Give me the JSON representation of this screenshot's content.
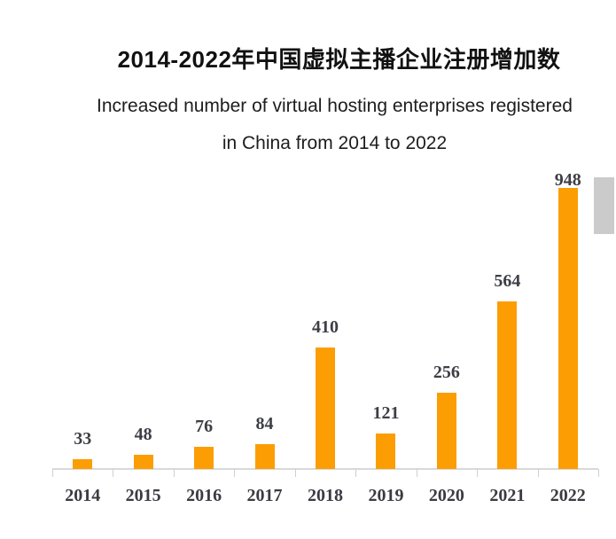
{
  "header": {
    "title_zh": "2014-2022年中国虚拟主播企业注册增加数",
    "subtitle_en_line1": "Increased number of virtual hosting enterprises registered",
    "subtitle_en_line2": "in China from 2014 to 2022"
  },
  "chart_data": {
    "type": "bar",
    "title": "2014-2022年中国虚拟主播企业注册增加数",
    "subtitle": "Increased number of virtual hosting enterprises registered in China from 2014 to 2022",
    "categories": [
      "2014",
      "2015",
      "2016",
      "2017",
      "2018",
      "2019",
      "2020",
      "2021",
      "2022"
    ],
    "values": [
      33,
      48,
      76,
      84,
      410,
      121,
      256,
      564,
      948
    ],
    "xlabel": "",
    "ylabel": "",
    "ylim": [
      0,
      1000
    ],
    "grid": false,
    "legend_position": "none",
    "value_labels_shown": true,
    "bar_color": "#FC9D04",
    "axis_color": "#d9d9d9",
    "label_color": "#3d3e46"
  },
  "scrollbar": {
    "thumb_color": "#cbcbcb"
  }
}
